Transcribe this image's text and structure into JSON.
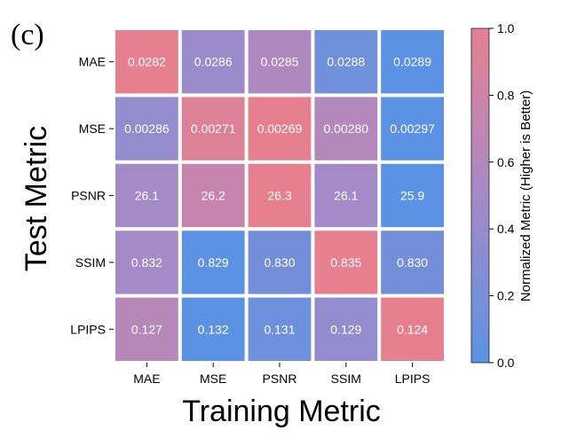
{
  "chart_data": {
    "type": "heatmap",
    "panel_label": "(c)",
    "xlabel": "Training Metric",
    "ylabel": "Test Metric",
    "x_categories": [
      "MAE",
      "MSE",
      "PSNR",
      "SSIM",
      "LPIPS"
    ],
    "y_categories": [
      "MAE",
      "MSE",
      "PSNR",
      "SSIM",
      "LPIPS"
    ],
    "cell_labels": [
      [
        "0.0282",
        "0.0286",
        "0.0285",
        "0.0288",
        "0.0289"
      ],
      [
        "0.00286",
        "0.00271",
        "0.00269",
        "0.00280",
        "0.00297"
      ],
      [
        "26.1",
        "26.2",
        "26.3",
        "26.1",
        "25.9"
      ],
      [
        "0.832",
        "0.829",
        "0.830",
        "0.835",
        "0.830"
      ],
      [
        "0.127",
        "0.132",
        "0.131",
        "0.129",
        "0.124"
      ]
    ],
    "normalized_values": [
      [
        1.0,
        0.43,
        0.57,
        0.14,
        0.0
      ],
      [
        0.39,
        0.93,
        1.0,
        0.61,
        0.0
      ],
      [
        0.5,
        0.75,
        1.0,
        0.5,
        0.0
      ],
      [
        0.5,
        0.0,
        0.17,
        1.0,
        0.17
      ],
      [
        0.63,
        0.0,
        0.13,
        0.38,
        1.0
      ]
    ],
    "colorbar": {
      "label": "Normalized Metric (Higher is Better)",
      "range": [
        0.0,
        1.0
      ],
      "ticks": [
        "0.0",
        "0.2",
        "0.4",
        "0.6",
        "0.8",
        "1.0"
      ],
      "color_low": "#5b92e4",
      "color_mid": "#a58ac8",
      "color_high": "#e6808f"
    }
  }
}
